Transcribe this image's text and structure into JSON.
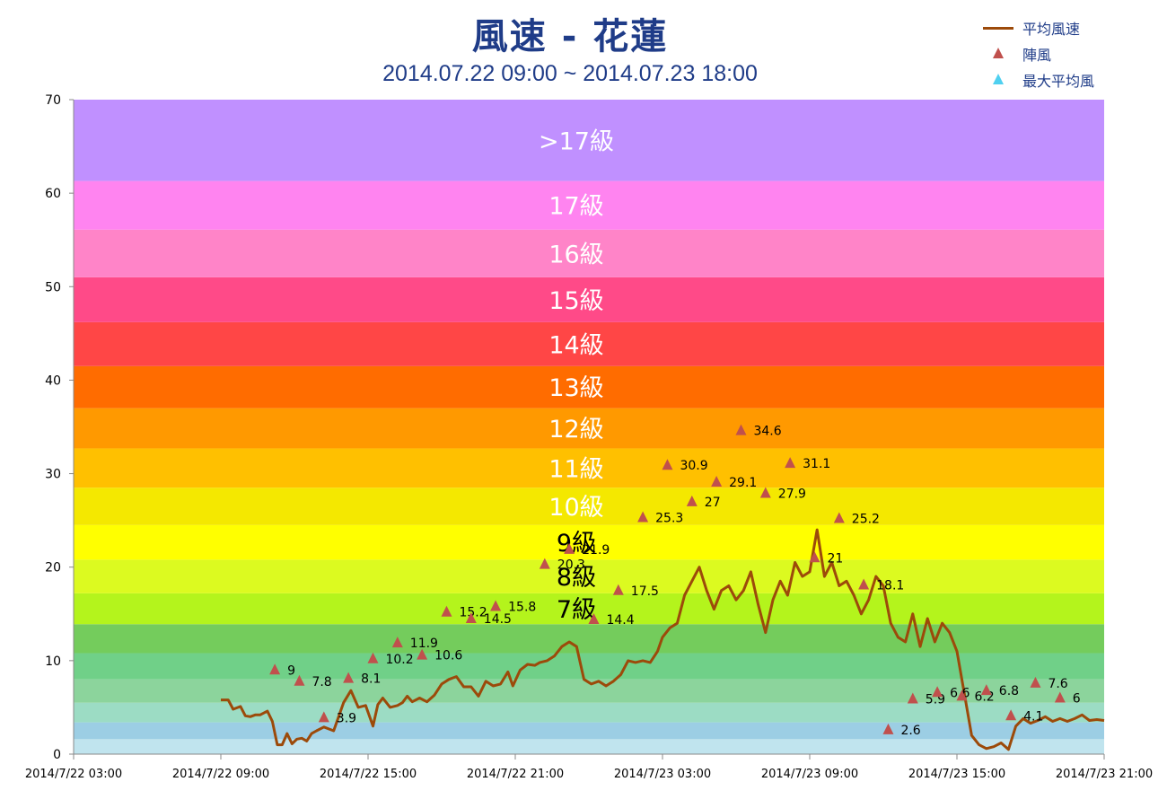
{
  "chart_data": {
    "type": "line",
    "title": "風速 - 花蓮",
    "subtitle": "2014.07.22 09:00 ~ 2014.07.23 18:00",
    "ylim": [
      0,
      70
    ],
    "yticks": [
      "0",
      "10",
      "20",
      "30",
      "40",
      "50",
      "60",
      "70"
    ],
    "xlim_hours": [
      0,
      42
    ],
    "xticks": [
      "2014/7/22 03:00",
      "2014/7/22 09:00",
      "2014/7/22 15:00",
      "2014/7/22 21:00",
      "2014/7/23 03:00",
      "2014/7/23 09:00",
      "2014/7/23 15:00",
      "2014/7/23 21:00"
    ],
    "legend": {
      "position": "top-right",
      "entries": [
        {
          "name": "平均風速",
          "color": "#9c4a0a"
        },
        {
          "name": "陣風",
          "color": "#c0504d"
        },
        {
          "name": "最大平均風",
          "color": "#4fd0f0"
        }
      ]
    },
    "bands": [
      {
        "from": 0,
        "to": 1.6,
        "color": "#c0e4ee",
        "label": ""
      },
      {
        "from": 1.6,
        "to": 3.4,
        "color": "#9ccee4",
        "label": ""
      },
      {
        "from": 3.4,
        "to": 5.5,
        "color": "#9cdcc4",
        "label": ""
      },
      {
        "from": 5.5,
        "to": 8.0,
        "color": "#8cd49c",
        "label": ""
      },
      {
        "from": 8.0,
        "to": 10.8,
        "color": "#70d088",
        "label": ""
      },
      {
        "from": 10.8,
        "to": 13.9,
        "color": "#74cc5c",
        "label": ""
      },
      {
        "from": 13.9,
        "to": 17.2,
        "color": "#b4f41c",
        "label": "7級"
      },
      {
        "from": 17.2,
        "to": 20.8,
        "color": "#dcfa20",
        "label": "8級"
      },
      {
        "from": 20.8,
        "to": 24.5,
        "color": "#ffff00",
        "label": "9級"
      },
      {
        "from": 24.5,
        "to": 28.5,
        "color": "#f4e800",
        "label": "10級"
      },
      {
        "from": 28.5,
        "to": 32.7,
        "color": "#ffc000",
        "label": "11級"
      },
      {
        "from": 32.7,
        "to": 37.0,
        "color": "#ff9900",
        "label": "12級"
      },
      {
        "from": 37.0,
        "to": 41.5,
        "color": "#ff6c00",
        "label": "13級"
      },
      {
        "from": 41.5,
        "to": 46.2,
        "color": "#ff4646",
        "label": "14級"
      },
      {
        "from": 46.2,
        "to": 51.0,
        "color": "#ff4a88",
        "label": "15級"
      },
      {
        "from": 51.0,
        "to": 56.1,
        "color": "#ff84c8",
        "label": "16級"
      },
      {
        "from": 56.1,
        "to": 61.3,
        "color": "#ff84f0",
        "label": "17級"
      },
      {
        "from": 61.3,
        "to": 70.0,
        "color": "#c090ff",
        "label": ">17級"
      }
    ],
    "series_mean": {
      "name": "平均風速",
      "x_hours": [
        6.0,
        6.3,
        6.5,
        6.8,
        7.0,
        7.2,
        7.4,
        7.6,
        7.9,
        8.1,
        8.3,
        8.5,
        8.7,
        8.9,
        9.1,
        9.3,
        9.5,
        9.7,
        9.9,
        10.2,
        10.6,
        11.0,
        11.3,
        11.6,
        11.9,
        12.2,
        12.4,
        12.6,
        12.9,
        13.2,
        13.4,
        13.6,
        13.8,
        14.1,
        14.4,
        14.7,
        15.0,
        15.3,
        15.6,
        15.9,
        16.2,
        16.5,
        16.8,
        17.1,
        17.4,
        17.7,
        17.9,
        18.2,
        18.5,
        18.8,
        19.0,
        19.3,
        19.6,
        19.9,
        20.2,
        20.5,
        20.8,
        21.1,
        21.4,
        21.7,
        22.0,
        22.3,
        22.6,
        22.9,
        23.2,
        23.5,
        23.8,
        24.0,
        24.3,
        24.6,
        24.9,
        25.2,
        25.5,
        25.8,
        26.1,
        26.4,
        26.7,
        27.0,
        27.3,
        27.6,
        27.9,
        28.2,
        28.5,
        28.8,
        29.1,
        29.4,
        29.7,
        30.0,
        30.3,
        30.6,
        30.9,
        31.2,
        31.5,
        31.8,
        32.1,
        32.4,
        32.7,
        33.0,
        33.3,
        33.6,
        33.9,
        34.2,
        34.5,
        34.8,
        35.1,
        35.4,
        35.7,
        36.0,
        36.3,
        36.6,
        36.9,
        37.2,
        37.5,
        37.8,
        38.1,
        38.4,
        38.7,
        39.0,
        39.3,
        39.6,
        39.9,
        40.2,
        40.5,
        40.8,
        41.1,
        41.4,
        41.7,
        42.0
      ],
      "values": [
        5.8,
        5.8,
        4.8,
        5.1,
        4.1,
        4.0,
        4.2,
        4.2,
        4.6,
        3.5,
        1.0,
        1.0,
        2.2,
        1.1,
        1.6,
        1.7,
        1.4,
        2.2,
        2.5,
        2.9,
        2.5,
        5.5,
        6.8,
        5.0,
        5.2,
        3.0,
        5.3,
        6.0,
        5.0,
        5.2,
        5.5,
        6.2,
        5.6,
        6.0,
        5.6,
        6.3,
        7.5,
        8.0,
        8.3,
        7.2,
        7.2,
        6.2,
        7.8,
        7.3,
        7.5,
        8.8,
        7.3,
        9.0,
        9.6,
        9.5,
        9.8,
        10.0,
        10.5,
        11.5,
        12.0,
        11.5,
        8.0,
        7.5,
        7.8,
        7.3,
        7.8,
        8.5,
        10.0,
        9.8,
        10.0,
        9.8,
        11.0,
        12.5,
        13.5,
        14.0,
        17.0,
        18.5,
        20.0,
        17.5,
        15.5,
        17.5,
        18.0,
        16.5,
        17.5,
        19.5,
        16.0,
        13.0,
        16.5,
        18.5,
        17.0,
        20.5,
        19.0,
        19.5,
        24.0,
        19.0,
        20.5,
        18.0,
        18.5,
        17.0,
        15.0,
        16.5,
        19.0,
        18.0,
        14.0,
        12.5,
        12.0,
        15.0,
        11.5,
        14.5,
        12.0,
        14.0,
        13.0,
        11.0,
        6.5,
        2.0,
        1.0,
        0.6,
        0.8,
        1.2,
        0.5,
        3.0,
        3.8,
        3.3,
        3.6,
        4.0,
        3.5,
        3.8,
        3.5,
        3.8,
        4.2,
        3.6,
        3.7,
        3.6
      ]
    },
    "series_gust": {
      "name": "陣風",
      "points": [
        {
          "x": 8.2,
          "y": 9.0,
          "label": "9"
        },
        {
          "x": 9.2,
          "y": 7.8,
          "label": "7.8"
        },
        {
          "x": 10.2,
          "y": 3.9,
          "label": "3.9"
        },
        {
          "x": 11.2,
          "y": 8.1,
          "label": "8.1"
        },
        {
          "x": 12.2,
          "y": 10.2,
          "label": "10.2"
        },
        {
          "x": 13.2,
          "y": 11.9,
          "label": "11.9"
        },
        {
          "x": 14.2,
          "y": 10.6,
          "label": "10.6"
        },
        {
          "x": 15.2,
          "y": 15.2,
          "label": "15.2"
        },
        {
          "x": 16.2,
          "y": 14.5,
          "label": "14.5"
        },
        {
          "x": 17.2,
          "y": 15.8,
          "label": "15.8"
        },
        {
          "x": 19.2,
          "y": 20.3,
          "label": "20.3"
        },
        {
          "x": 20.2,
          "y": 21.9,
          "label": "21.9"
        },
        {
          "x": 21.2,
          "y": 14.4,
          "label": "14.4"
        },
        {
          "x": 22.2,
          "y": 17.5,
          "label": "17.5"
        },
        {
          "x": 23.2,
          "y": 25.3,
          "label": "25.3"
        },
        {
          "x": 24.2,
          "y": 30.9,
          "label": "30.9"
        },
        {
          "x": 25.2,
          "y": 27.0,
          "label": "27"
        },
        {
          "x": 26.2,
          "y": 29.1,
          "label": "29.1"
        },
        {
          "x": 27.2,
          "y": 34.6,
          "label": "34.6"
        },
        {
          "x": 28.2,
          "y": 27.9,
          "label": "27.9"
        },
        {
          "x": 29.2,
          "y": 31.1,
          "label": "31.1"
        },
        {
          "x": 30.2,
          "y": 21.0,
          "label": "21"
        },
        {
          "x": 31.2,
          "y": 25.2,
          "label": "25.2"
        },
        {
          "x": 32.2,
          "y": 18.1,
          "label": "18.1"
        },
        {
          "x": 33.2,
          "y": 2.6,
          "label": "2.6"
        },
        {
          "x": 34.2,
          "y": 5.9,
          "label": "5.9"
        },
        {
          "x": 35.2,
          "y": 6.6,
          "label": "6.6"
        },
        {
          "x": 36.2,
          "y": 6.2,
          "label": "6.2"
        },
        {
          "x": 37.2,
          "y": 6.8,
          "label": "6.8"
        },
        {
          "x": 38.2,
          "y": 4.1,
          "label": "4.1"
        },
        {
          "x": 39.2,
          "y": 7.6,
          "label": "7.6"
        },
        {
          "x": 40.2,
          "y": 6.0,
          "label": "6"
        }
      ]
    }
  }
}
